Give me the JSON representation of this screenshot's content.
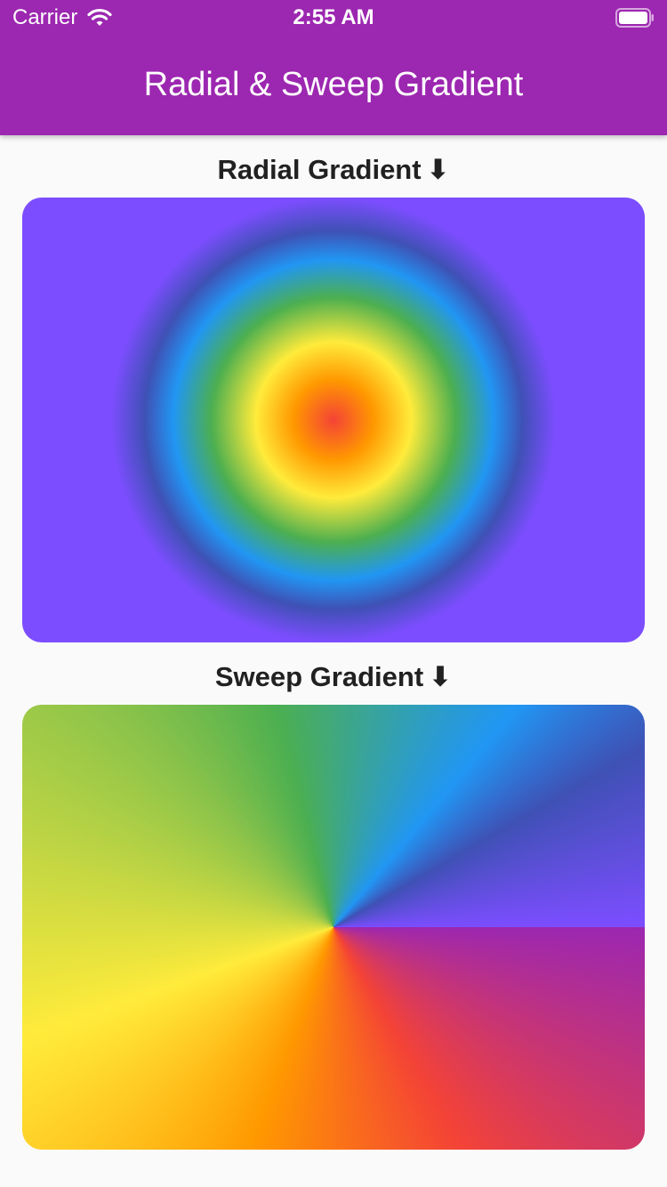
{
  "status_bar": {
    "carrier": "Carrier",
    "time": "2:55 AM",
    "wifi_icon": "wifi-icon",
    "battery_icon": "battery-icon"
  },
  "app_bar": {
    "title": "Radial & Sweep Gradient",
    "color": "#9c27b0"
  },
  "sections": [
    {
      "label": "Radial Gradient",
      "arrow": "⬇",
      "gradient_type": "radial",
      "colors": [
        "#f44336",
        "#ff9800",
        "#ffeb3b",
        "#4caf50",
        "#2196f3",
        "#3f51b5",
        "#7c4dff"
      ]
    },
    {
      "label": "Sweep Gradient",
      "arrow": "⬇",
      "gradient_type": "sweep",
      "colors": [
        "#9c27b0",
        "#f44336",
        "#ff9800",
        "#ffeb3b",
        "#8bc34a",
        "#4caf50",
        "#2196f3",
        "#3f51b5",
        "#7c4dff"
      ]
    }
  ]
}
